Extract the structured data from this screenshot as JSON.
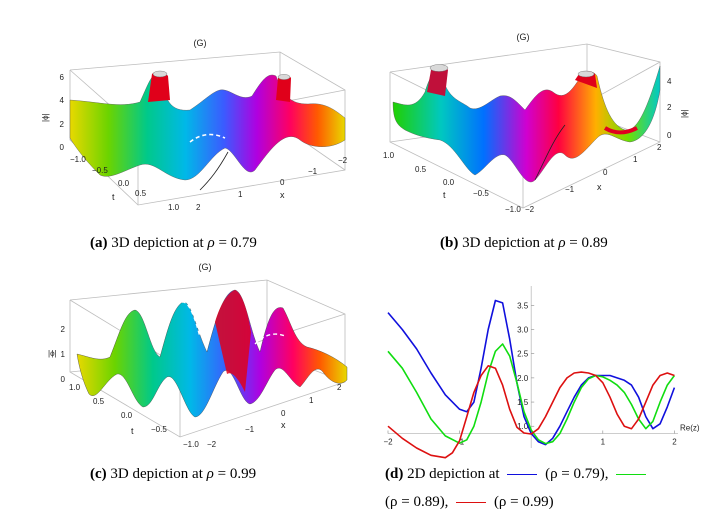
{
  "figure": {
    "panels": [
      {
        "id": "a",
        "label": "(a)",
        "caption": "3D depiction at",
        "rho": "0.79",
        "plot_label": "(G)",
        "z_axis": "|ϕ|",
        "z_ticks": [
          "0",
          "2",
          "4",
          "6"
        ],
        "t_ticks": [
          "−1.0",
          "−0.5",
          "0.0",
          "0.5",
          "1.0"
        ],
        "x_ticks": [
          "−2",
          "−1",
          "0",
          "1",
          "2"
        ],
        "t_label": "t",
        "x_label": "x"
      },
      {
        "id": "b",
        "label": "(b)",
        "caption": "3D depiction at",
        "rho": "0.89",
        "plot_label": "(G)",
        "z_axis": "|ϕ|",
        "z_ticks": [
          "0",
          "2",
          "4"
        ],
        "t_ticks": [
          "1.0",
          "0.5",
          "0.0",
          "−0.5",
          "−1.0"
        ],
        "x_ticks": [
          "−2",
          "−1",
          "0",
          "1",
          "2"
        ],
        "t_label": "t",
        "x_label": "x"
      },
      {
        "id": "c",
        "label": "(c)",
        "caption": "3D depiction at",
        "rho": "0.99",
        "plot_label": "(G)",
        "z_axis": "|ϕ|",
        "z_ticks": [
          "0",
          "1",
          "2"
        ],
        "t_ticks": [
          "1.0",
          "0.5",
          "0.0",
          "−0.5",
          "−1.0"
        ],
        "x_ticks": [
          "−2",
          "−1",
          "0",
          "1",
          "2"
        ],
        "t_label": "t",
        "x_label": "x"
      }
    ],
    "panel_d": {
      "label": "(d)",
      "caption_start": "2D depiction at",
      "legend": [
        {
          "rho": "0.79",
          "color": "#1010dd",
          "text": "(ρ = 0.79),",
          "prefix": "(ρ ="
        },
        {
          "rho": "0.89",
          "color": "#10dd10",
          "text": "(ρ = 0.89),",
          "prefix": "(ρ ="
        },
        {
          "rho": "0.99",
          "color": "#dd1010",
          "text": "(ρ = 0.99)",
          "prefix": "(ρ ="
        }
      ]
    }
  },
  "chart_data": {
    "type": "line",
    "x_ticks": [
      "−2",
      "−1",
      "1",
      "2"
    ],
    "y_ticks": [
      "1.0",
      "1.5",
      "2.0",
      "2.5",
      "3.0",
      "3.5"
    ],
    "x_ticks_num": [
      -2,
      -1,
      1,
      2
    ],
    "y_ticks_num": [
      1.0,
      1.5,
      2.0,
      2.5,
      3.0,
      3.5
    ],
    "xlabel": "Re(z)",
    "xlim": [
      -2.0,
      2.05
    ],
    "ylim": [
      0.55,
      3.9
    ],
    "series": [
      {
        "name": "ρ = 0.79",
        "color": "#1010dd",
        "x": [
          -2.0,
          -1.8,
          -1.6,
          -1.4,
          -1.2,
          -1.0,
          -0.9,
          -0.8,
          -0.7,
          -0.6,
          -0.5,
          -0.4,
          -0.3,
          -0.2,
          -0.1,
          0.0,
          0.1,
          0.2,
          0.3,
          0.4,
          0.5,
          0.6,
          0.7,
          0.8,
          0.9,
          1.0,
          1.1,
          1.2,
          1.3,
          1.4,
          1.5,
          1.6,
          1.7,
          1.8,
          1.9,
          2.0
        ],
        "y": [
          3.35,
          3.0,
          2.6,
          2.1,
          1.65,
          1.35,
          1.3,
          1.5,
          2.2,
          3.0,
          3.6,
          3.55,
          2.8,
          1.9,
          1.2,
          0.85,
          0.68,
          0.62,
          0.75,
          1.0,
          1.3,
          1.6,
          1.85,
          2.0,
          2.05,
          2.05,
          2.05,
          2.0,
          1.95,
          1.85,
          1.6,
          1.2,
          0.95,
          1.05,
          1.4,
          1.8
        ]
      },
      {
        "name": "ρ = 0.89",
        "color": "#10dd10",
        "x": [
          -2.0,
          -1.8,
          -1.6,
          -1.4,
          -1.2,
          -1.0,
          -0.9,
          -0.8,
          -0.7,
          -0.6,
          -0.5,
          -0.4,
          -0.3,
          -0.2,
          -0.1,
          0.0,
          0.1,
          0.2,
          0.3,
          0.4,
          0.5,
          0.6,
          0.7,
          0.8,
          0.9,
          1.0,
          1.1,
          1.2,
          1.3,
          1.4,
          1.5,
          1.6,
          1.7,
          1.8,
          1.9,
          2.0
        ],
        "y": [
          2.55,
          2.2,
          1.7,
          1.15,
          0.8,
          0.65,
          0.72,
          1.0,
          1.5,
          2.1,
          2.55,
          2.7,
          2.45,
          1.9,
          1.3,
          0.92,
          0.72,
          0.64,
          0.68,
          0.85,
          1.15,
          1.5,
          1.8,
          1.98,
          2.05,
          2.02,
          1.95,
          1.85,
          1.7,
          1.45,
          1.15,
          0.95,
          1.1,
          1.5,
          1.85,
          2.05
        ]
      },
      {
        "name": "ρ = 0.99",
        "color": "#dd1010",
        "x": [
          -2.0,
          -1.8,
          -1.6,
          -1.4,
          -1.2,
          -1.1,
          -1.0,
          -0.9,
          -0.8,
          -0.7,
          -0.6,
          -0.5,
          -0.4,
          -0.3,
          -0.2,
          -0.1,
          0.0,
          0.1,
          0.2,
          0.3,
          0.4,
          0.5,
          0.6,
          0.7,
          0.8,
          0.9,
          1.0,
          1.1,
          1.2,
          1.3,
          1.4,
          1.5,
          1.6,
          1.7,
          1.8,
          1.9,
          2.0
        ],
        "y": [
          1.0,
          0.75,
          0.55,
          0.4,
          0.35,
          0.45,
          0.7,
          1.2,
          1.7,
          2.05,
          2.25,
          2.2,
          1.85,
          1.35,
          0.98,
          0.86,
          0.84,
          0.95,
          1.2,
          1.5,
          1.8,
          2.0,
          2.1,
          2.12,
          2.1,
          2.05,
          1.9,
          1.6,
          1.25,
          1.0,
          0.95,
          1.15,
          1.5,
          1.85,
          2.05,
          2.1,
          2.05
        ]
      }
    ]
  }
}
